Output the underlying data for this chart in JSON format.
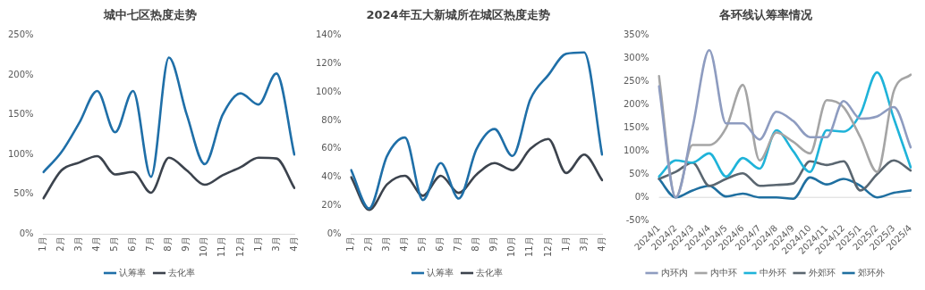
{
  "chart_data": [
    {
      "type": "line",
      "title": "城中七区热度走势",
      "categories": [
        "1月",
        "2月",
        "3月",
        "4月",
        "5月",
        "6月",
        "7月",
        "8月",
        "9月",
        "10月",
        "11月",
        "12月",
        "1月",
        "3月",
        "4月"
      ],
      "series": [
        {
          "name": "认筹率",
          "color": "#1f6fa8",
          "values": [
            78,
            103,
            140,
            180,
            128,
            180,
            72,
            222,
            150,
            88,
            150,
            177,
            163,
            202,
            100
          ]
        },
        {
          "name": "去化率",
          "color": "#3c434d",
          "values": [
            45,
            80,
            90,
            98,
            75,
            78,
            52,
            96,
            80,
            62,
            74,
            84,
            96,
            95,
            58
          ]
        }
      ],
      "ylim": [
        0,
        250
      ],
      "yticks": [
        {
          "value": 0,
          "label": "0%"
        },
        {
          "value": 50,
          "label": "50%"
        },
        {
          "value": 100,
          "label": "100%"
        },
        {
          "value": 150,
          "label": "150%"
        },
        {
          "value": 200,
          "label": "200%"
        },
        {
          "value": 250,
          "label": "250%"
        }
      ],
      "grid": false,
      "legend": "bottom",
      "marker": "none"
    },
    {
      "type": "line",
      "title": "2024年五大新城所在城区热度走势",
      "categories": [
        "1月",
        "2月",
        "3月",
        "4月",
        "5月",
        "6月",
        "7月",
        "8月",
        "9月",
        "10月",
        "11月",
        "12月",
        "1月",
        "3月",
        "4月"
      ],
      "series": [
        {
          "name": "认筹率",
          "color": "#1f6fa8",
          "values": [
            45,
            18,
            55,
            68,
            24,
            50,
            25,
            60,
            74,
            55,
            95,
            112,
            127,
            128,
            56
          ]
        },
        {
          "name": "去化率",
          "color": "#3c434d",
          "values": [
            40,
            17,
            35,
            41,
            27,
            41,
            29,
            42,
            50,
            45,
            60,
            67,
            43,
            56,
            38
          ]
        }
      ],
      "ylim": [
        0,
        140
      ],
      "yticks": [
        {
          "value": 0,
          "label": "0%"
        },
        {
          "value": 20,
          "label": "20%"
        },
        {
          "value": 40,
          "label": "40%"
        },
        {
          "value": 60,
          "label": "60%"
        },
        {
          "value": 80,
          "label": "80%"
        },
        {
          "value": 100,
          "label": "100%"
        },
        {
          "value": 120,
          "label": "120%"
        },
        {
          "value": 140,
          "label": "140%"
        }
      ],
      "grid": false,
      "legend": "bottom",
      "marker": "none"
    },
    {
      "type": "line",
      "title": "各环线认筹率情况",
      "categories": [
        "2024/1",
        "2024/2",
        "2024/3",
        "2024/4",
        "2024/5",
        "2024/6",
        "2024/7",
        "2024/8",
        "2024/9",
        "2024/10",
        "2024/11",
        "2024/12",
        "2025/1",
        "2025/2",
        "2025/3",
        "2025/4"
      ],
      "series": [
        {
          "name": "内环内",
          "color": "#8e9cc0",
          "values": [
            240,
            0,
            150,
            318,
            160,
            160,
            125,
            185,
            165,
            130,
            130,
            208,
            170,
            175,
            195,
            108
          ]
        },
        {
          "name": "内中环",
          "color": "#a5a5a5",
          "values": [
            262,
            0,
            113,
            113,
            150,
            243,
            80,
            140,
            120,
            95,
            210,
            195,
            130,
            55,
            230,
            265
          ]
        },
        {
          "name": "中外环",
          "color": "#1fb3d9",
          "values": [
            45,
            80,
            75,
            95,
            45,
            85,
            62,
            145,
            100,
            55,
            145,
            142,
            180,
            270,
            170,
            65
          ]
        },
        {
          "name": "外郊环",
          "color": "#5a6670",
          "values": [
            40,
            55,
            75,
            25,
            40,
            52,
            25,
            27,
            30,
            78,
            70,
            78,
            15,
            50,
            80,
            58
          ]
        },
        {
          "name": "郊环外",
          "color": "#1f6fa0",
          "values": [
            40,
            0,
            15,
            25,
            2,
            8,
            0,
            0,
            -3,
            43,
            28,
            40,
            25,
            0,
            10,
            15
          ]
        }
      ],
      "ylim": [
        -50,
        350
      ],
      "yticks": [
        {
          "value": -50,
          "label": "-50%"
        },
        {
          "value": 0,
          "label": "0%"
        },
        {
          "value": 50,
          "label": "50%"
        },
        {
          "value": 100,
          "label": "100%"
        },
        {
          "value": 150,
          "label": "150%"
        },
        {
          "value": 200,
          "label": "200%"
        },
        {
          "value": 250,
          "label": "250%"
        },
        {
          "value": 300,
          "label": "300%"
        },
        {
          "value": 350,
          "label": "350%"
        }
      ],
      "ref_lines": [
        {
          "axis": "y",
          "value": 0,
          "color": "#d9d9d9"
        }
      ],
      "grid": false,
      "legend": "bottom",
      "marker": "none"
    }
  ]
}
